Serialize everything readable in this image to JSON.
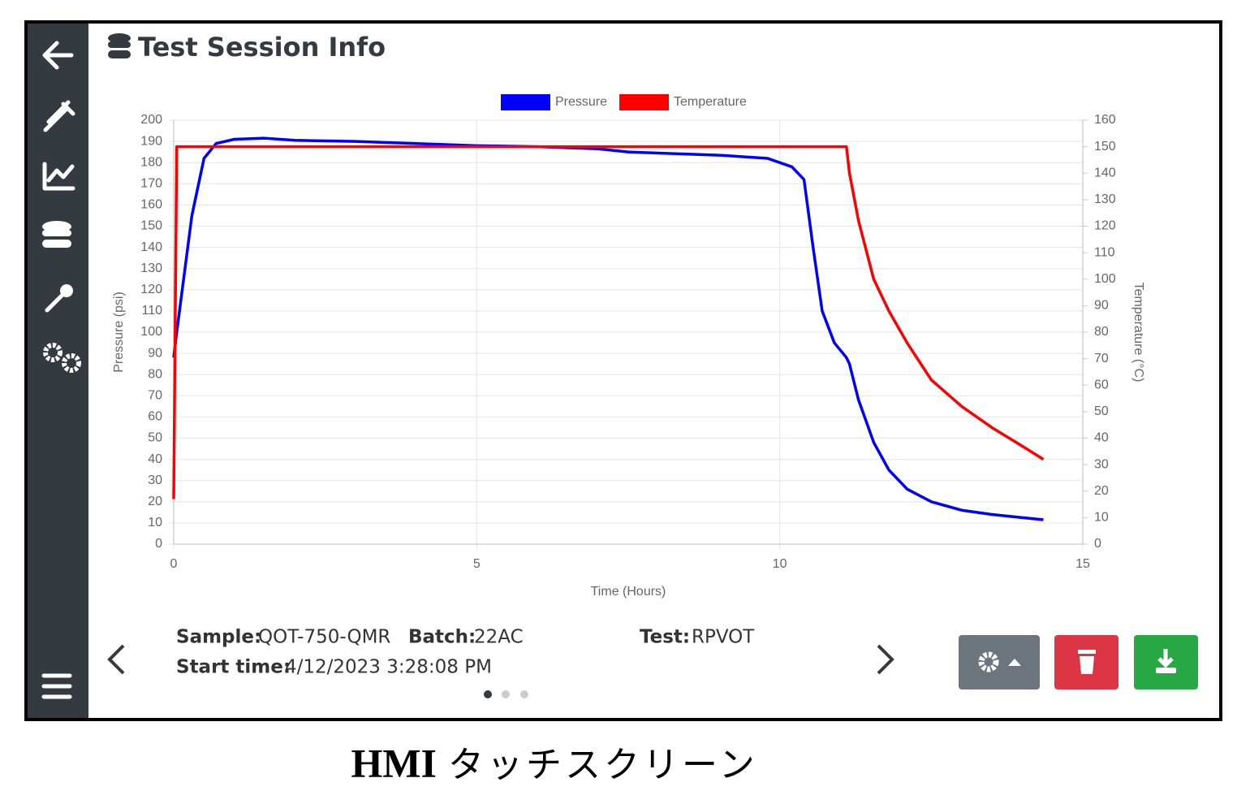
{
  "header": {
    "title": "Test Session Info"
  },
  "chart_data": {
    "type": "line",
    "x_label": "Time (Hours)",
    "y_label": "Pressure (psi)",
    "y2_label": "Temperature (°C)",
    "x": [
      0,
      0.05,
      0.3,
      0.5,
      0.7,
      1,
      1.5,
      2,
      3,
      4,
      5,
      6,
      7,
      7.5,
      8,
      9,
      9.8,
      10.2,
      10.4,
      10.55,
      10.7,
      10.9,
      11.1,
      11.15,
      11.3,
      11.55,
      11.8,
      12.1,
      12.5,
      13,
      13.5,
      14,
      14.35
    ],
    "series": [
      {
        "name": "Pressure",
        "color": "#0000ff",
        "axis": "y",
        "values": [
          88,
          100,
          155,
          182,
          189,
          191,
          191.5,
          190.5,
          190,
          189,
          188,
          187.5,
          186.5,
          185,
          184.5,
          183.5,
          182,
          178,
          172,
          140,
          110,
          95,
          88,
          85,
          68,
          48,
          35,
          26,
          20,
          16,
          14,
          12.5,
          11.5
        ]
      },
      {
        "name": "Temperature",
        "color": "#ff0000",
        "axis": "y2",
        "values": [
          17,
          150,
          150,
          150,
          150,
          150,
          150,
          150,
          150,
          150,
          150,
          150,
          150,
          150,
          150,
          150,
          150,
          150,
          150,
          150,
          150,
          150,
          150,
          140,
          122,
          100,
          88,
          76,
          62,
          52,
          44,
          37,
          32
        ]
      }
    ],
    "xlim": [
      0,
      15
    ],
    "xticks": [
      0,
      5,
      10,
      15
    ],
    "ylim": [
      0,
      200
    ],
    "yticks": [
      0,
      10,
      20,
      30,
      40,
      50,
      60,
      70,
      80,
      90,
      100,
      110,
      120,
      130,
      140,
      150,
      160,
      170,
      180,
      190,
      200
    ],
    "y2lim": [
      0,
      160
    ],
    "y2ticks": [
      0,
      10,
      20,
      30,
      40,
      50,
      60,
      70,
      80,
      90,
      100,
      110,
      120,
      130,
      140,
      150,
      160
    ],
    "grid": true,
    "legend": "top"
  },
  "info": {
    "sample_label": "Sample:",
    "sample": "QOT-750-QMR",
    "batch_label": "Batch:",
    "batch": "22AC",
    "test_label": "Test:",
    "test": "RPVOT",
    "start_label": "Start time:",
    "start": "4/12/2023 3:28:08 PM"
  },
  "caption": {
    "bold": "HMI",
    "text": "タッチスクリーン"
  }
}
